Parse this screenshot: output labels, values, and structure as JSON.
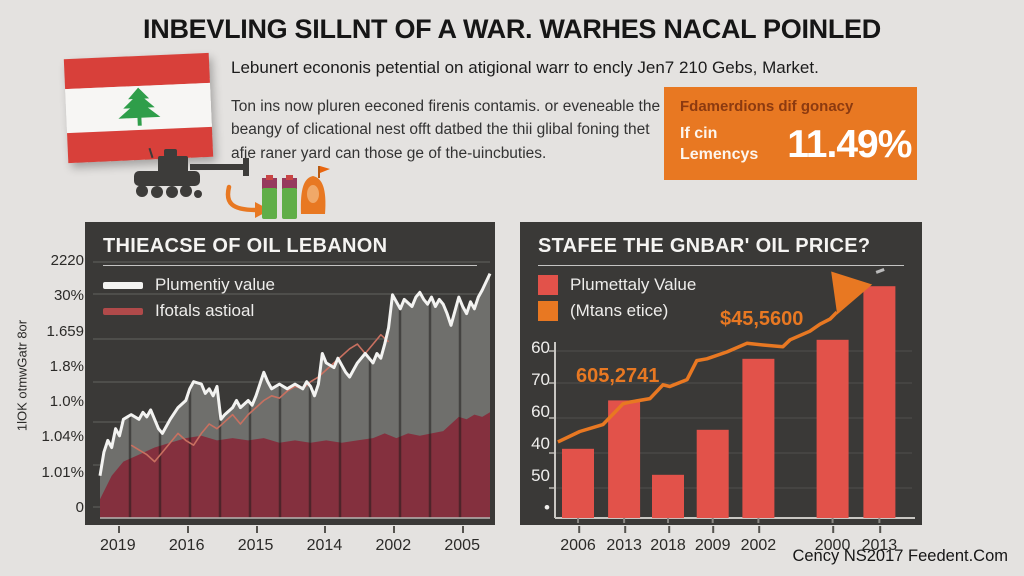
{
  "colors": {
    "background": "#e4e2e0",
    "accent_orange": "#e87822",
    "bar_red": "#e2524a",
    "maroon_area": "#84303e",
    "panel_dark": "#3a3937",
    "flag_red": "#d8403a",
    "cedar_green": "#2f9e4a"
  },
  "header": {
    "title": "INBEVLING SILLNT OF A WAR. WARHES NACAL POINLED",
    "subtitle": "Lebunert econonis petential on atigional warr to encly Jen7 210 Gebs, Market.",
    "paragraph": "Ton ins now pluren eeconed firenis contamis. or eveneable the beangy of clicational nest offt datbed the thii glibal foning thet afie raner yard can those ge of the-uincbuties."
  },
  "stat_box": {
    "title": "Fdamerdions dif gonacy",
    "label_line1": "If cin",
    "label_line2": "Lemencys",
    "value": "11.49%",
    "bg": "#e87822"
  },
  "footer": {
    "credit": "Cency NS2017 Feedent.Com"
  },
  "chart_data": [
    {
      "type": "area",
      "title": "THIEACSE OF OIL LEBANON",
      "legend": [
        {
          "label": "Plumentiy value",
          "color": "#f3f3f1"
        },
        {
          "label": "Ifotals astioal",
          "color": "#b04a4a"
        }
      ],
      "y_axis_label": "1lOK otmwGatr 8or",
      "y_ticks": [
        "2220",
        "30%",
        "1.659",
        "1.8%",
        "1.0%",
        "1.04%",
        "1.01%",
        "0"
      ],
      "x_ticks": [
        "2019",
        "2016",
        "2015",
        "2014",
        "2002",
        "2005"
      ],
      "grid": true,
      "column_separators": true,
      "series": {
        "white_line": [
          [
            0,
            0.18
          ],
          [
            0.01,
            0.28
          ],
          [
            0.02,
            0.33
          ],
          [
            0.03,
            0.3
          ],
          [
            0.04,
            0.38
          ],
          [
            0.05,
            0.35
          ],
          [
            0.06,
            0.42
          ],
          [
            0.08,
            0.44
          ],
          [
            0.1,
            0.42
          ],
          [
            0.11,
            0.45
          ],
          [
            0.12,
            0.43
          ],
          [
            0.13,
            0.46
          ],
          [
            0.14,
            0.42
          ],
          [
            0.15,
            0.38
          ],
          [
            0.16,
            0.36
          ],
          [
            0.18,
            0.42
          ],
          [
            0.2,
            0.47
          ],
          [
            0.22,
            0.5
          ],
          [
            0.23,
            0.55
          ],
          [
            0.24,
            0.58
          ],
          [
            0.26,
            0.57
          ],
          [
            0.27,
            0.53
          ],
          [
            0.28,
            0.55
          ],
          [
            0.29,
            0.52
          ],
          [
            0.3,
            0.56
          ],
          [
            0.31,
            0.42
          ],
          [
            0.32,
            0.44
          ],
          [
            0.34,
            0.47
          ],
          [
            0.35,
            0.5
          ],
          [
            0.36,
            0.47
          ],
          [
            0.38,
            0.5
          ],
          [
            0.39,
            0.48
          ],
          [
            0.4,
            0.52
          ],
          [
            0.42,
            0.62
          ],
          [
            0.43,
            0.58
          ],
          [
            0.44,
            0.55
          ],
          [
            0.46,
            0.57
          ],
          [
            0.48,
            0.55
          ],
          [
            0.5,
            0.57
          ],
          [
            0.52,
            0.55
          ],
          [
            0.53,
            0.58
          ],
          [
            0.54,
            0.56
          ],
          [
            0.55,
            0.52
          ],
          [
            0.56,
            0.57
          ],
          [
            0.57,
            0.7
          ],
          [
            0.58,
            0.66
          ],
          [
            0.6,
            0.64
          ],
          [
            0.61,
            0.68
          ],
          [
            0.62,
            0.65
          ],
          [
            0.63,
            0.62
          ],
          [
            0.64,
            0.6
          ],
          [
            0.65,
            0.63
          ],
          [
            0.66,
            0.66
          ],
          [
            0.68,
            0.7
          ],
          [
            0.69,
            0.68
          ],
          [
            0.7,
            0.66
          ],
          [
            0.71,
            0.7
          ],
          [
            0.72,
            0.68
          ],
          [
            0.73,
            0.74
          ],
          [
            0.74,
            0.81
          ],
          [
            0.75,
            0.95
          ],
          [
            0.76,
            0.92
          ],
          [
            0.77,
            0.89
          ],
          [
            0.78,
            0.93
          ],
          [
            0.8,
            0.9
          ],
          [
            0.81,
            0.94
          ],
          [
            0.82,
            0.96
          ],
          [
            0.83,
            0.93
          ],
          [
            0.84,
            0.91
          ],
          [
            0.85,
            0.94
          ],
          [
            0.86,
            0.9
          ],
          [
            0.87,
            0.93
          ],
          [
            0.88,
            0.91
          ],
          [
            0.89,
            0.87
          ],
          [
            0.9,
            0.82
          ],
          [
            0.91,
            0.88
          ],
          [
            0.92,
            0.94
          ],
          [
            0.93,
            0.9
          ],
          [
            0.94,
            0.87
          ],
          [
            0.95,
            0.92
          ],
          [
            0.96,
            0.89
          ],
          [
            0.97,
            0.94
          ],
          [
            0.98,
            0.97
          ],
          [
            1.0,
            1.04
          ]
        ],
        "maroon_area": [
          [
            0,
            0.08
          ],
          [
            0.03,
            0.18
          ],
          [
            0.06,
            0.24
          ],
          [
            0.1,
            0.27
          ],
          [
            0.14,
            0.3
          ],
          [
            0.18,
            0.32
          ],
          [
            0.22,
            0.34
          ],
          [
            0.26,
            0.35
          ],
          [
            0.3,
            0.33
          ],
          [
            0.34,
            0.34
          ],
          [
            0.38,
            0.33
          ],
          [
            0.42,
            0.34
          ],
          [
            0.46,
            0.32
          ],
          [
            0.5,
            0.33
          ],
          [
            0.54,
            0.32
          ],
          [
            0.58,
            0.33
          ],
          [
            0.62,
            0.32
          ],
          [
            0.66,
            0.33
          ],
          [
            0.7,
            0.34
          ],
          [
            0.73,
            0.36
          ],
          [
            0.76,
            0.34
          ],
          [
            0.79,
            0.36
          ],
          [
            0.82,
            0.35
          ],
          [
            0.85,
            0.36
          ],
          [
            0.88,
            0.37
          ],
          [
            0.9,
            0.4
          ],
          [
            0.92,
            0.43
          ],
          [
            0.94,
            0.42
          ],
          [
            0.96,
            0.44
          ],
          [
            0.98,
            0.43
          ],
          [
            1.0,
            0.45
          ]
        ],
        "accent_line": [
          [
            0.08,
            0.31
          ],
          [
            0.1,
            0.29
          ],
          [
            0.12,
            0.27
          ],
          [
            0.14,
            0.24
          ],
          [
            0.16,
            0.28
          ],
          [
            0.18,
            0.32
          ],
          [
            0.2,
            0.36
          ],
          [
            0.22,
            0.33
          ],
          [
            0.24,
            0.31
          ],
          [
            0.26,
            0.36
          ],
          [
            0.28,
            0.4
          ],
          [
            0.3,
            0.38
          ],
          [
            0.32,
            0.41
          ],
          [
            0.34,
            0.44
          ],
          [
            0.36,
            0.4
          ],
          [
            0.38,
            0.44
          ],
          [
            0.4,
            0.47
          ],
          [
            0.42,
            0.5
          ],
          [
            0.44,
            0.52
          ],
          [
            0.46,
            0.51
          ],
          [
            0.48,
            0.54
          ],
          [
            0.5,
            0.56
          ],
          [
            0.52,
            0.55
          ],
          [
            0.54,
            0.58
          ],
          [
            0.56,
            0.6
          ],
          [
            0.58,
            0.63
          ],
          [
            0.6,
            0.66
          ],
          [
            0.62,
            0.69
          ],
          [
            0.64,
            0.72
          ],
          [
            0.66,
            0.74
          ],
          [
            0.68,
            0.7
          ],
          [
            0.7,
            0.74
          ],
          [
            0.72,
            0.78
          ],
          [
            0.74,
            0.75
          ]
        ]
      }
    },
    {
      "type": "bar-line",
      "title": "STAFEE THE GNBAR' OIL PRICE?",
      "legend": [
        {
          "label": "Plumettaly Value",
          "color": "#e2524a"
        },
        {
          "label": "(Mtans etice)",
          "color": "#e87822"
        }
      ],
      "y_ticks": [
        "60",
        "70",
        "60",
        "40",
        "50",
        "•"
      ],
      "x_ticks": [
        "2006",
        "2013",
        "2018",
        "2009",
        "2002",
        "2000",
        "2013"
      ],
      "bars": {
        "color": "#e2524a",
        "x": [
          0.064,
          0.192,
          0.314,
          0.438,
          0.565,
          0.771,
          0.901
        ],
        "values": [
          0.4,
          0.68,
          0.25,
          0.51,
          0.92,
          1.03,
          1.34
        ]
      },
      "line": {
        "color": "#e87822",
        "points": [
          [
            0.008,
            0.44
          ],
          [
            0.069,
            0.5
          ],
          [
            0.133,
            0.54
          ],
          [
            0.189,
            0.66
          ],
          [
            0.208,
            0.67
          ],
          [
            0.264,
            0.69
          ],
          [
            0.3,
            0.77
          ],
          [
            0.319,
            0.76
          ],
          [
            0.367,
            0.8
          ],
          [
            0.394,
            0.91
          ],
          [
            0.422,
            0.92
          ],
          [
            0.478,
            0.96
          ],
          [
            0.533,
            1.01
          ],
          [
            0.578,
            1.0
          ],
          [
            0.633,
            0.99
          ],
          [
            0.653,
            1.03
          ],
          [
            0.708,
            1.08
          ],
          [
            0.736,
            1.12
          ],
          [
            0.764,
            1.15
          ],
          [
            0.783,
            1.19
          ]
        ],
        "arrow_tip": [
          0.881,
          1.35
        ]
      },
      "annotations": [
        {
          "text": "605,2741"
        },
        {
          "text": "$45,5600"
        }
      ]
    }
  ]
}
